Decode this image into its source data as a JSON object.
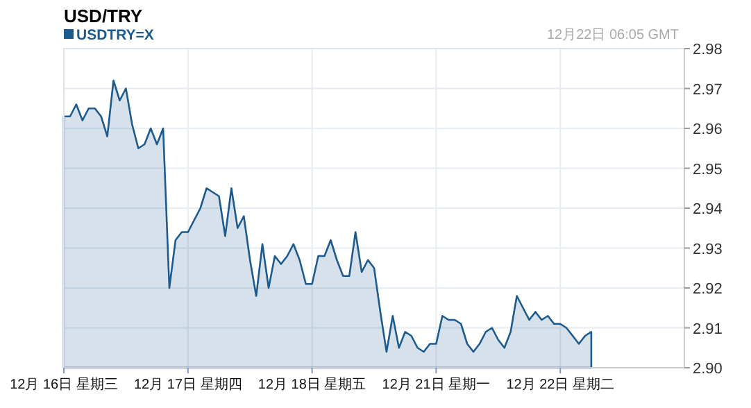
{
  "chart_data": {
    "type": "area",
    "title": "USD/TRY",
    "annotations": [
      "12月22日 06:05 GMT"
    ],
    "categories": [
      "12月 16日 星期三",
      null,
      null,
      null,
      null,
      null,
      null,
      null,
      null,
      null,
      null,
      null,
      null,
      null,
      null,
      null,
      null,
      null,
      null,
      null,
      "12月 17日 星期四",
      null,
      null,
      null,
      null,
      null,
      null,
      null,
      null,
      null,
      null,
      null,
      null,
      null,
      null,
      null,
      null,
      null,
      null,
      null,
      "12月 18日 星期五",
      null,
      null,
      null,
      null,
      null,
      null,
      null,
      null,
      null,
      null,
      null,
      null,
      null,
      null,
      null,
      null,
      null,
      null,
      null,
      "12月 21日 星期一",
      null,
      null,
      null,
      null,
      null,
      null,
      null,
      null,
      null,
      null,
      null,
      null,
      null,
      null,
      null,
      null,
      null,
      null,
      null,
      "12月 22日 星期二",
      null,
      null,
      null,
      null,
      null,
      null,
      null,
      null,
      null,
      null,
      null,
      null,
      null,
      null,
      null,
      null,
      null,
      null,
      null
    ],
    "series": [
      {
        "name": "USDTRY=X",
        "color": "#1d5a8e",
        "values": [
          2.963,
          2.963,
          2.966,
          2.962,
          2.965,
          2.965,
          2.963,
          2.958,
          2.972,
          2.967,
          2.97,
          2.961,
          2.955,
          2.956,
          2.96,
          2.956,
          2.96,
          2.92,
          2.932,
          2.934,
          2.934,
          2.937,
          2.94,
          2.945,
          2.944,
          2.943,
          2.933,
          2.945,
          2.935,
          2.938,
          2.927,
          2.918,
          2.931,
          2.92,
          2.928,
          2.926,
          2.928,
          2.931,
          2.927,
          2.921,
          2.921,
          2.928,
          2.928,
          2.932,
          2.927,
          2.923,
          2.923,
          2.934,
          2.924,
          2.927,
          2.925,
          2.914,
          2.904,
          2.913,
          2.905,
          2.909,
          2.908,
          2.905,
          2.904,
          2.906,
          2.906,
          2.913,
          2.912,
          2.912,
          2.911,
          2.906,
          2.904,
          2.906,
          2.909,
          2.91,
          2.907,
          2.905,
          2.909,
          2.918,
          2.915,
          2.912,
          2.914,
          2.912,
          2.913,
          2.911,
          2.911,
          2.91,
          2.908,
          2.906,
          2.908,
          2.909,
          null,
          null,
          null,
          null,
          null,
          null,
          null,
          null,
          null,
          null,
          null,
          null,
          null,
          null
        ]
      }
    ],
    "ylim": [
      2.9,
      2.98
    ],
    "yticks": [
      {
        "value": 2.9,
        "label": "2.90"
      },
      {
        "value": 2.91,
        "label": "2.91"
      },
      {
        "value": 2.92,
        "label": "2.92"
      },
      {
        "value": 2.93,
        "label": "2.93"
      },
      {
        "value": 2.94,
        "label": "2.94"
      },
      {
        "value": 2.95,
        "label": "2.95"
      },
      {
        "value": 2.96,
        "label": "2.96"
      },
      {
        "value": 2.97,
        "label": "2.97"
      },
      {
        "value": 2.98,
        "label": "2.98"
      }
    ],
    "grid": true,
    "legend": "top left"
  }
}
